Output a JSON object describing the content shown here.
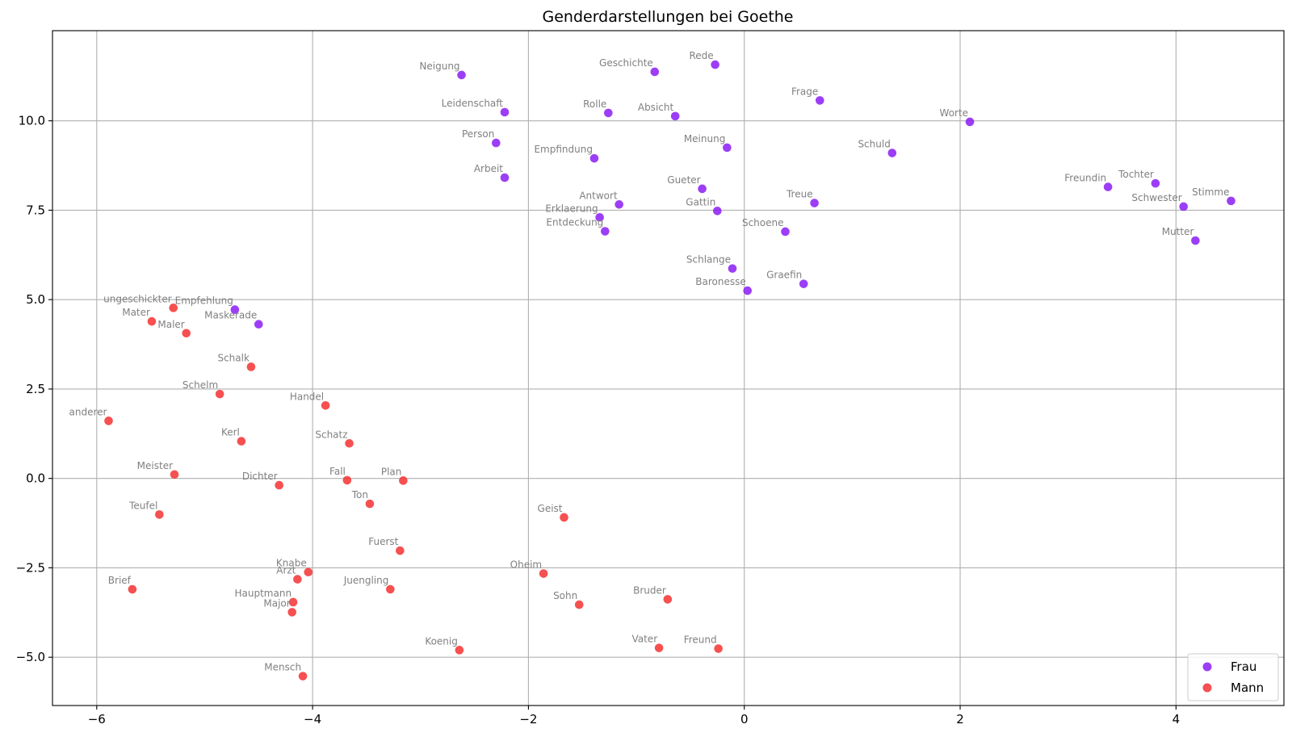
{
  "chart_data": {
    "type": "scatter",
    "title": "Genderdarstellungen bei Goethe",
    "xlabel": "",
    "ylabel": "",
    "xlim": [
      -6.41,
      5.0
    ],
    "ylim": [
      -6.35,
      12.52
    ],
    "xticks": [
      -6,
      -4,
      -2,
      0,
      2,
      4
    ],
    "yticks": [
      -5.0,
      -2.5,
      0.0,
      2.5,
      5.0,
      7.5,
      10.0
    ],
    "xtick_labels": [
      "−6",
      "−4",
      "−2",
      "0",
      "2",
      "4"
    ],
    "ytick_labels": [
      "−5.0",
      "−2.5",
      "0.0",
      "2.5",
      "5.0",
      "7.5",
      "10.0"
    ],
    "grid": true,
    "legend_position": "lower-right",
    "series": [
      {
        "name": "Frau",
        "color": "#8b1cf5",
        "points": [
          {
            "label": "Neigung",
            "x": -2.62,
            "y": 11.28
          },
          {
            "label": "Geschichte",
            "x": -0.83,
            "y": 11.37
          },
          {
            "label": "Rede",
            "x": -0.27,
            "y": 11.57
          },
          {
            "label": "Leidenschaft",
            "x": -2.22,
            "y": 10.24
          },
          {
            "label": "Rolle",
            "x": -1.26,
            "y": 10.22
          },
          {
            "label": "Absicht",
            "x": -0.64,
            "y": 10.13
          },
          {
            "label": "Frage",
            "x": 0.7,
            "y": 10.57
          },
          {
            "label": "Worte",
            "x": 2.09,
            "y": 9.97
          },
          {
            "label": "Person",
            "x": -2.3,
            "y": 9.38
          },
          {
            "label": "Meinung",
            "x": -0.16,
            "y": 9.25
          },
          {
            "label": "Empfindung",
            "x": -1.39,
            "y": 8.95
          },
          {
            "label": "Schuld",
            "x": 1.37,
            "y": 9.1
          },
          {
            "label": "Arbeit",
            "x": -2.22,
            "y": 8.41
          },
          {
            "label": "Gueter",
            "x": -0.39,
            "y": 8.1
          },
          {
            "label": "Freundin",
            "x": 3.37,
            "y": 8.15
          },
          {
            "label": "Tochter",
            "x": 3.81,
            "y": 8.25
          },
          {
            "label": "Antwort",
            "x": -1.16,
            "y": 7.66
          },
          {
            "label": "Gattin",
            "x": -0.25,
            "y": 7.48
          },
          {
            "label": "Treue",
            "x": 0.65,
            "y": 7.7
          },
          {
            "label": "Schwester",
            "x": 4.07,
            "y": 7.6
          },
          {
            "label": "Stimme",
            "x": 4.51,
            "y": 7.76
          },
          {
            "label": "Erklaerung",
            "x": -1.34,
            "y": 7.3
          },
          {
            "label": "Entdeckung",
            "x": -1.29,
            "y": 6.91
          },
          {
            "label": "Schoene",
            "x": 0.38,
            "y": 6.9
          },
          {
            "label": "Mutter",
            "x": 4.18,
            "y": 6.65
          },
          {
            "label": "Schlange",
            "x": -0.11,
            "y": 5.87
          },
          {
            "label": "Graefin",
            "x": 0.55,
            "y": 5.44
          },
          {
            "label": "Baronesse",
            "x": 0.03,
            "y": 5.25
          },
          {
            "label": "Empfehlung",
            "x": -4.72,
            "y": 4.72
          },
          {
            "label": "Maskerade",
            "x": -4.5,
            "y": 4.31
          }
        ]
      },
      {
        "name": "Mann",
        "color": "#f53131",
        "points": [
          {
            "label": "ungeschickter",
            "x": -5.29,
            "y": 4.77
          },
          {
            "label": "Mater",
            "x": -5.49,
            "y": 4.39
          },
          {
            "label": "Maler",
            "x": -5.17,
            "y": 4.06
          },
          {
            "label": "Schalk",
            "x": -4.57,
            "y": 3.12
          },
          {
            "label": "Schelm",
            "x": -4.86,
            "y": 2.36
          },
          {
            "label": "Handel",
            "x": -3.88,
            "y": 2.04
          },
          {
            "label": "anderer",
            "x": -5.89,
            "y": 1.61
          },
          {
            "label": "Kerl",
            "x": -4.66,
            "y": 1.04
          },
          {
            "label": "Schatz",
            "x": -3.66,
            "y": 0.98
          },
          {
            "label": "Meister",
            "x": -5.28,
            "y": 0.11
          },
          {
            "label": "Dichter",
            "x": -4.31,
            "y": -0.19
          },
          {
            "label": "Fall",
            "x": -3.68,
            "y": -0.05
          },
          {
            "label": "Plan",
            "x": -3.16,
            "y": -0.06
          },
          {
            "label": "Ton",
            "x": -3.47,
            "y": -0.71
          },
          {
            "label": "Teufel",
            "x": -5.42,
            "y": -1.01
          },
          {
            "label": "Geist",
            "x": -1.67,
            "y": -1.09
          },
          {
            "label": "Fuerst",
            "x": -3.19,
            "y": -2.02
          },
          {
            "label": "Knabe",
            "x": -4.04,
            "y": -2.62
          },
          {
            "label": "Arzt",
            "x": -4.14,
            "y": -2.82
          },
          {
            "label": "Oheim",
            "x": -1.86,
            "y": -2.66
          },
          {
            "label": "Brief",
            "x": -5.67,
            "y": -3.1
          },
          {
            "label": "Juengling",
            "x": -3.28,
            "y": -3.1
          },
          {
            "label": "Hauptmann",
            "x": -4.18,
            "y": -3.46
          },
          {
            "label": "Major",
            "x": -4.19,
            "y": -3.74
          },
          {
            "label": "Sohn",
            "x": -1.53,
            "y": -3.53
          },
          {
            "label": "Bruder",
            "x": -0.71,
            "y": -3.38
          },
          {
            "label": "Koenig",
            "x": -2.64,
            "y": -4.8
          },
          {
            "label": "Vater",
            "x": -0.79,
            "y": -4.74
          },
          {
            "label": "Freund",
            "x": -0.24,
            "y": -4.76
          },
          {
            "label": "Mensch",
            "x": -4.09,
            "y": -5.53
          }
        ]
      }
    ]
  }
}
